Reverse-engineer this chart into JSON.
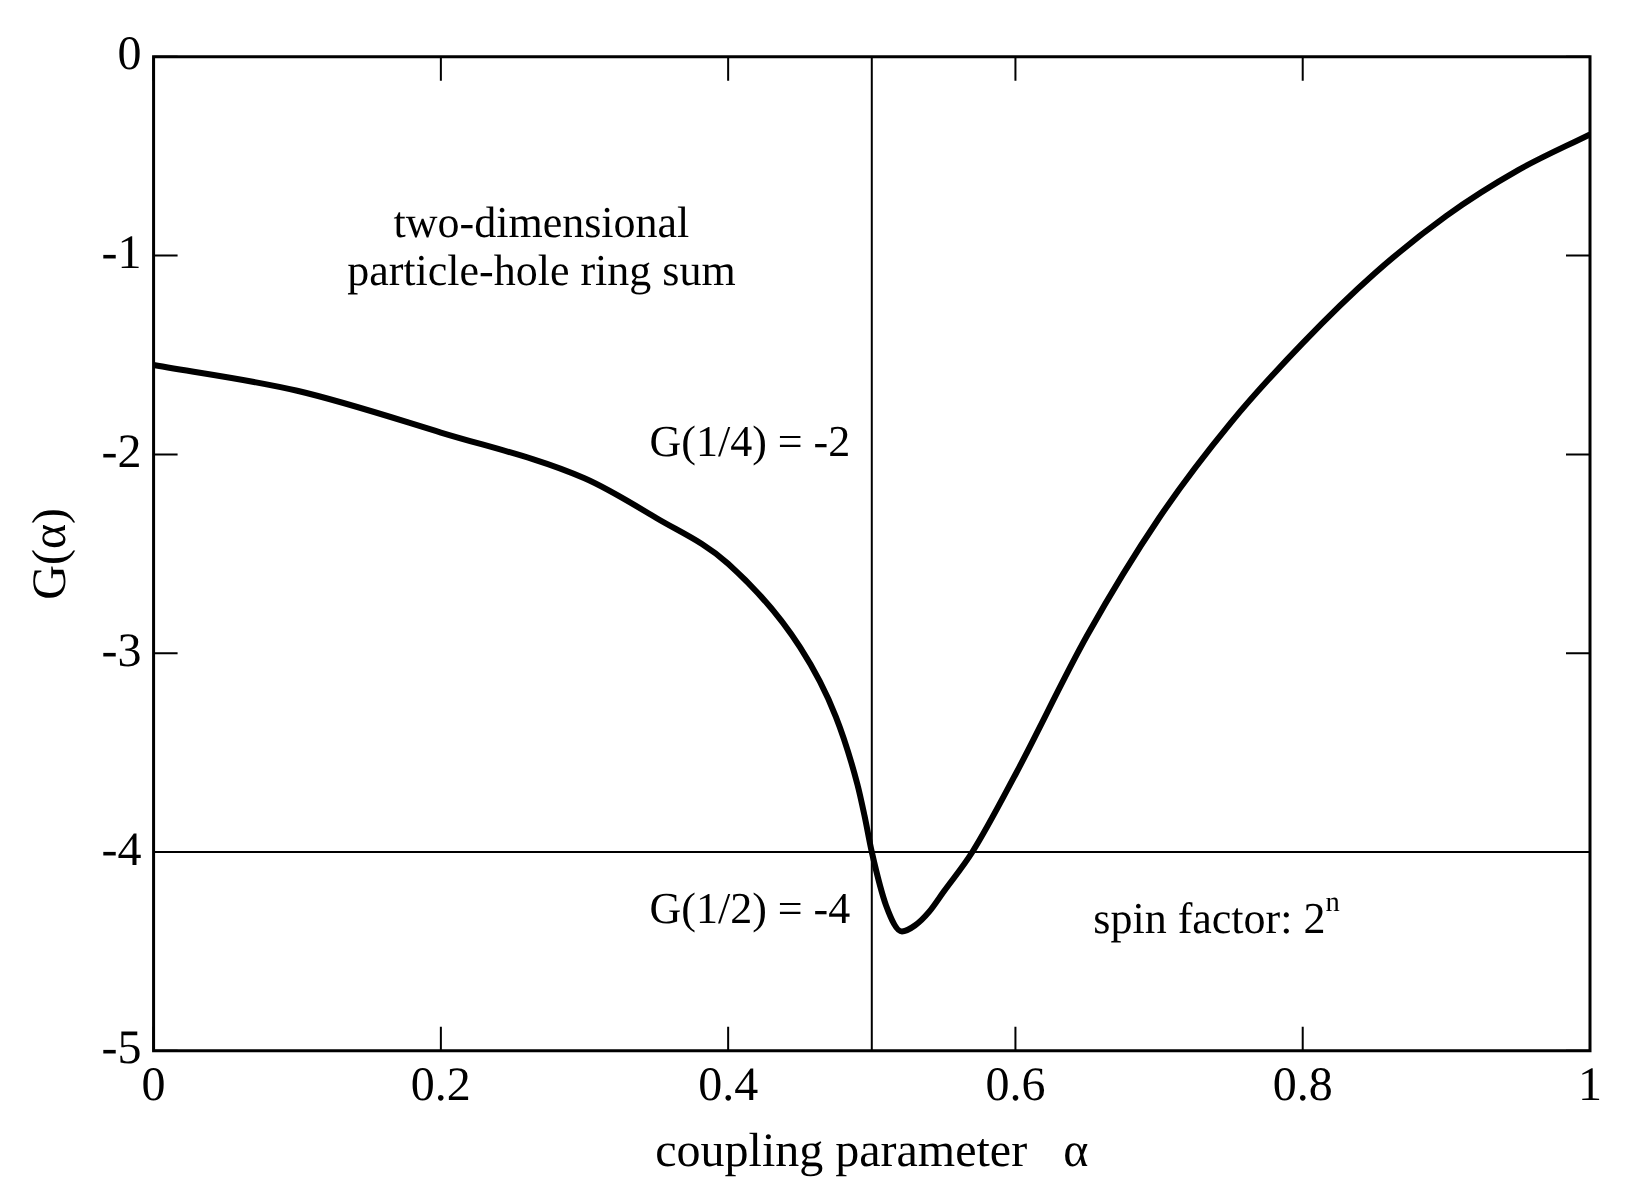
{
  "chart_data": {
    "type": "line",
    "xlabel": "coupling parameter   α",
    "ylabel": "G(α)",
    "x": [
      0,
      0.1,
      0.2,
      0.3,
      0.35,
      0.4,
      0.45,
      0.475,
      0.49,
      0.495,
      0.5,
      0.51,
      0.521,
      0.53,
      0.54,
      0.55,
      0.57,
      0.6,
      0.65,
      0.7,
      0.75,
      0.8,
      0.85,
      0.9,
      0.95,
      1.0
    ],
    "series": [
      {
        "color": "#000000",
        "values": [
          -1.55,
          -1.68,
          -1.89,
          -2.12,
          -2.32,
          -2.55,
          -2.97,
          -3.32,
          -3.66,
          -3.82,
          -4.0,
          -4.27,
          -4.4,
          -4.37,
          -4.3,
          -4.2,
          -4.0,
          -3.61,
          -2.91,
          -2.32,
          -1.84,
          -1.44,
          -1.09,
          -0.8,
          -0.57,
          -0.39
        ]
      }
    ],
    "xlim": [
      0,
      1
    ],
    "xticks": [
      0,
      0.2,
      0.4,
      0.6,
      0.8,
      1
    ],
    "ylim": [
      -5,
      0
    ],
    "yticks": [
      -5,
      -4,
      -3,
      -2,
      -1,
      0
    ],
    "ref_lines": [
      {
        "axis": "x",
        "value": 0.5,
        "color": "#000000"
      },
      {
        "axis": "y",
        "value": -4,
        "color": "#000000"
      }
    ],
    "annotations": [
      "two-dimensional\nparticle-hole ring sum",
      "G(1/4) = -2",
      "G(1/2) = -4",
      "spin factor: 2$^{n}$"
    ],
    "grid": false,
    "legend": false,
    "marker": "none",
    "line_style": "solid"
  }
}
